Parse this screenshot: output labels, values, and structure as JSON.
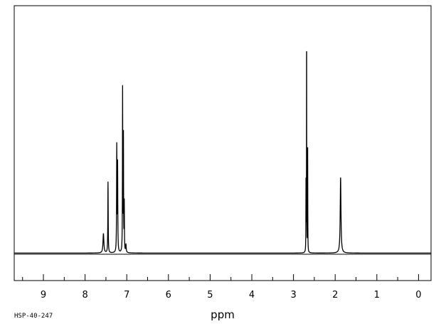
{
  "chart_data": {
    "type": "line",
    "xlabel": "ppm",
    "x_reversed": true,
    "xlim": [
      9.7,
      -0.3
    ],
    "ylim": [
      -0.12,
      1.08
    ],
    "grid": false,
    "major_ticks": [
      9,
      8,
      7,
      6,
      5,
      4,
      3,
      2,
      1,
      0
    ],
    "minor_ticks": [
      9.5,
      8.5,
      7.5,
      6.5,
      5.5,
      4.5,
      3.5,
      2.5,
      1.5,
      0.5
    ],
    "tick_labels": [
      "9",
      "8",
      "7",
      "6",
      "5",
      "4",
      "3",
      "2",
      "1",
      "0"
    ],
    "peaks": [
      {
        "ppm": 7.56,
        "height": 0.085,
        "width": 0.025
      },
      {
        "ppm": 7.45,
        "height": 0.31,
        "width": 0.01
      },
      {
        "ppm": 7.24,
        "height": 0.46,
        "width": 0.01
      },
      {
        "ppm": 7.22,
        "height": 0.38,
        "width": 0.01
      },
      {
        "ppm": 7.1,
        "height": 0.71,
        "width": 0.008
      },
      {
        "ppm": 7.08,
        "height": 0.5,
        "width": 0.008
      },
      {
        "ppm": 7.06,
        "height": 0.21,
        "width": 0.008
      },
      {
        "ppm": 7.02,
        "height": 0.035,
        "width": 0.015
      },
      {
        "ppm": 2.685,
        "height": 1.0,
        "width": 0.005
      },
      {
        "ppm": 2.66,
        "height": 0.45,
        "width": 0.006
      },
      {
        "ppm": 2.7,
        "height": 0.3,
        "width": 0.006
      },
      {
        "ppm": 1.87,
        "height": 0.33,
        "width": 0.022
      }
    ]
  },
  "footer": {
    "sample_id": "HSP-40-247"
  }
}
